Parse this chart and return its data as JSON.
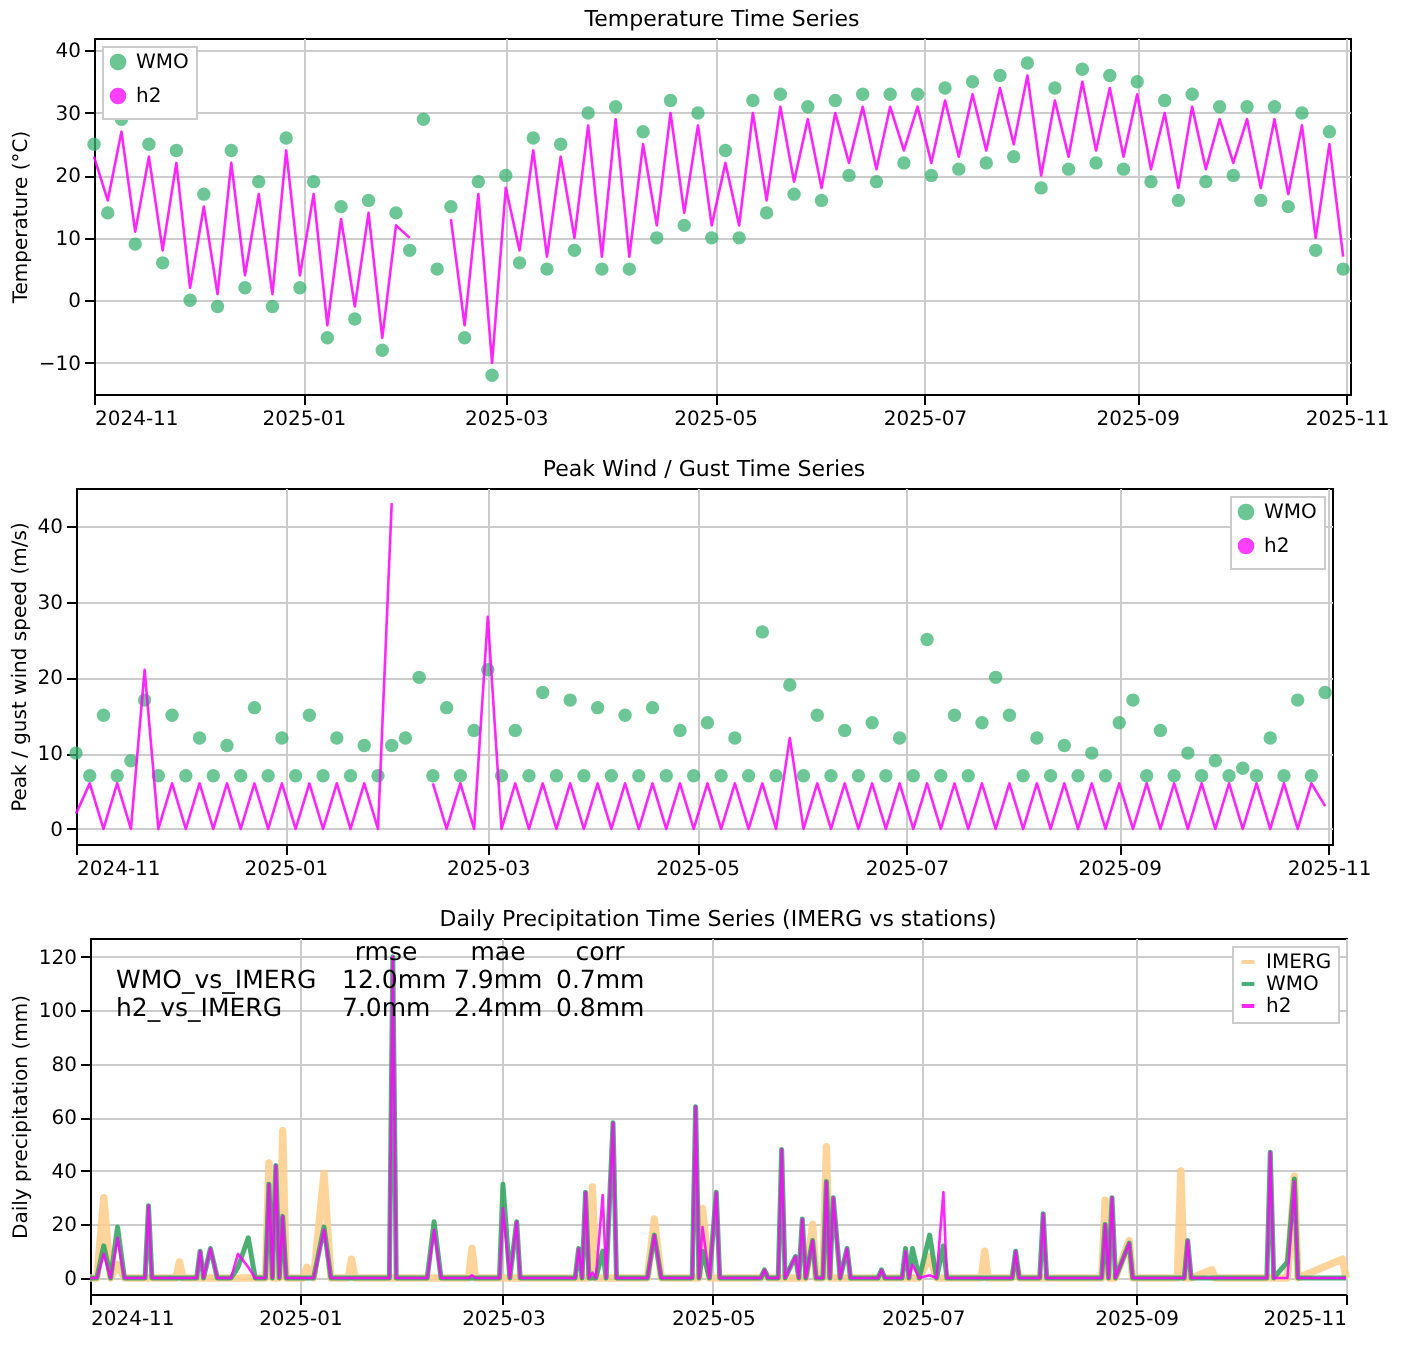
{
  "chart_data": [
    {
      "type": "line",
      "title": "Temperature Time Series",
      "ylabel": "Temperature (°C)",
      "x": [
        "2024-11-01",
        "2024-11-05",
        "2024-11-09",
        "2024-11-13",
        "2024-11-17",
        "2024-11-21",
        "2024-11-25",
        "2024-11-29",
        "2024-12-03",
        "2024-12-07",
        "2024-12-11",
        "2024-12-15",
        "2024-12-19",
        "2024-12-23",
        "2024-12-27",
        "2024-12-31",
        "2025-01-04",
        "2025-01-08",
        "2025-01-12",
        "2025-01-16",
        "2025-01-20",
        "2025-01-24",
        "2025-01-28",
        "2025-02-01",
        "2025-02-05",
        "2025-02-09",
        "2025-02-13",
        "2025-02-17",
        "2025-02-21",
        "2025-02-25",
        "2025-03-01",
        "2025-03-05",
        "2025-03-09",
        "2025-03-13",
        "2025-03-17",
        "2025-03-21",
        "2025-03-25",
        "2025-03-29",
        "2025-04-02",
        "2025-04-06",
        "2025-04-10",
        "2025-04-14",
        "2025-04-18",
        "2025-04-22",
        "2025-04-26",
        "2025-04-30",
        "2025-05-04",
        "2025-05-08",
        "2025-05-12",
        "2025-05-16",
        "2025-05-20",
        "2025-05-24",
        "2025-05-28",
        "2025-06-01",
        "2025-06-05",
        "2025-06-09",
        "2025-06-13",
        "2025-06-17",
        "2025-06-21",
        "2025-06-25",
        "2025-06-29",
        "2025-07-03",
        "2025-07-07",
        "2025-07-11",
        "2025-07-15",
        "2025-07-19",
        "2025-07-23",
        "2025-07-27",
        "2025-07-31",
        "2025-08-04",
        "2025-08-08",
        "2025-08-12",
        "2025-08-16",
        "2025-08-20",
        "2025-08-24",
        "2025-08-28",
        "2025-09-01",
        "2025-09-05",
        "2025-09-09",
        "2025-09-13",
        "2025-09-17",
        "2025-09-21",
        "2025-09-25",
        "2025-09-29",
        "2025-10-03",
        "2025-10-07",
        "2025-10-11",
        "2025-10-15",
        "2025-10-19",
        "2025-10-23",
        "2025-10-27",
        "2025-10-31"
      ],
      "series": [
        {
          "name": "WMO",
          "type": "scatter",
          "marker": "circle",
          "color": "#3cb371",
          "values": [
            25,
            14,
            29,
            9,
            25,
            6,
            24,
            0,
            17,
            -1,
            24,
            2,
            19,
            -1,
            26,
            2,
            19,
            -6,
            15,
            -3,
            16,
            -8,
            14,
            8,
            29,
            5,
            15,
            -6,
            19,
            -12,
            20,
            6,
            26,
            5,
            25,
            8,
            30,
            5,
            31,
            5,
            27,
            10,
            32,
            12,
            30,
            10,
            24,
            10,
            32,
            14,
            33,
            17,
            31,
            16,
            32,
            20,
            33,
            19,
            33,
            22,
            33,
            20,
            34,
            21,
            35,
            22,
            36,
            23,
            38,
            18,
            34,
            21,
            37,
            22,
            36,
            21,
            35,
            19,
            32,
            16,
            33,
            19,
            31,
            20,
            31,
            16,
            31,
            15,
            30,
            8,
            27,
            5
          ]
        },
        {
          "name": "h2",
          "color": "#ff00ff",
          "values": [
            23,
            16,
            27,
            11,
            23,
            8,
            22,
            2,
            15,
            1,
            22,
            4,
            17,
            1,
            24,
            4,
            17,
            -4,
            13,
            -1,
            14,
            -6,
            12,
            10,
            null,
            null,
            13,
            -4,
            17,
            -10,
            18,
            8,
            24,
            7,
            23,
            10,
            28,
            7,
            29,
            7,
            25,
            12,
            30,
            14,
            28,
            12,
            22,
            12,
            30,
            16,
            31,
            19,
            29,
            18,
            30,
            22,
            31,
            21,
            31,
            24,
            31,
            22,
            32,
            23,
            33,
            24,
            34,
            25,
            36,
            20,
            32,
            23,
            35,
            24,
            34,
            23,
            33,
            21,
            30,
            18,
            31,
            21,
            29,
            22,
            29,
            18,
            29,
            17,
            28,
            10,
            25,
            7
          ]
        }
      ],
      "xlim": [
        "2024-11-01",
        "2025-11-02"
      ],
      "xticks": [
        "2024-11",
        "2025-01",
        "2025-03",
        "2025-05",
        "2025-07",
        "2025-09",
        "2025-11"
      ],
      "ylim": [
        -15,
        42
      ],
      "yticks": [
        -10,
        0,
        10,
        20,
        30,
        40
      ],
      "grid": true,
      "legend": "top left"
    },
    {
      "type": "line",
      "title": "Peak Wind / Gust Time Series",
      "ylabel": "Peak / gust wind speed (m/s)",
      "x": [
        "2024-11-01",
        "2024-11-05",
        "2024-11-09",
        "2024-11-13",
        "2024-11-17",
        "2024-11-21",
        "2024-11-25",
        "2024-11-29",
        "2024-12-03",
        "2024-12-07",
        "2024-12-11",
        "2024-12-15",
        "2024-12-19",
        "2024-12-23",
        "2024-12-27",
        "2024-12-31",
        "2025-01-04",
        "2025-01-08",
        "2025-01-12",
        "2025-01-16",
        "2025-01-20",
        "2025-01-24",
        "2025-01-28",
        "2025-02-01",
        "2025-02-05",
        "2025-02-09",
        "2025-02-13",
        "2025-02-17",
        "2025-02-21",
        "2025-02-25",
        "2025-03-01",
        "2025-03-05",
        "2025-03-09",
        "2025-03-13",
        "2025-03-17",
        "2025-03-21",
        "2025-03-25",
        "2025-03-29",
        "2025-04-02",
        "2025-04-06",
        "2025-04-10",
        "2025-04-14",
        "2025-04-18",
        "2025-04-22",
        "2025-04-26",
        "2025-04-30",
        "2025-05-04",
        "2025-05-08",
        "2025-05-12",
        "2025-05-16",
        "2025-05-20",
        "2025-05-24",
        "2025-05-28",
        "2025-06-01",
        "2025-06-05",
        "2025-06-09",
        "2025-06-13",
        "2025-06-17",
        "2025-06-21",
        "2025-06-25",
        "2025-06-29",
        "2025-07-03",
        "2025-07-07",
        "2025-07-11",
        "2025-07-15",
        "2025-07-19",
        "2025-07-23",
        "2025-07-27",
        "2025-07-31",
        "2025-08-04",
        "2025-08-08",
        "2025-08-12",
        "2025-08-16",
        "2025-08-20",
        "2025-08-24",
        "2025-08-28",
        "2025-09-01",
        "2025-09-05",
        "2025-09-09",
        "2025-09-13",
        "2025-09-17",
        "2025-09-21",
        "2025-09-25",
        "2025-09-29",
        "2025-10-03",
        "2025-10-07",
        "2025-10-11",
        "2025-10-15",
        "2025-10-19",
        "2025-10-23",
        "2025-10-27",
        "2025-10-31"
      ],
      "series": [
        {
          "name": "WMO",
          "type": "scatter",
          "marker": "circle",
          "color": "#3cb371",
          "values": [
            10,
            7,
            15,
            7,
            9,
            17,
            7,
            15,
            7,
            12,
            7,
            11,
            7,
            16,
            7,
            12,
            7,
            15,
            7,
            12,
            7,
            11,
            7,
            11,
            12,
            20,
            7,
            16,
            7,
            13,
            21,
            7,
            13,
            7,
            18,
            7,
            17,
            7,
            16,
            7,
            15,
            7,
            16,
            7,
            13,
            7,
            14,
            7,
            12,
            7,
            26,
            7,
            19,
            7,
            15,
            7,
            13,
            7,
            14,
            7,
            12,
            7,
            25,
            7,
            15,
            7,
            14,
            20,
            15,
            7,
            12,
            7,
            11,
            7,
            10,
            7,
            14,
            17,
            7,
            13,
            7,
            10,
            7,
            9,
            7,
            8,
            7,
            12,
            7,
            17,
            7,
            18
          ]
        },
        {
          "name": "h2",
          "color": "#ff00ff",
          "values": [
            2,
            6,
            0,
            6,
            0,
            21,
            0,
            6,
            0,
            6,
            0,
            6,
            0,
            6,
            0,
            6,
            0,
            6,
            0,
            6,
            0,
            6,
            0,
            43,
            null,
            null,
            6,
            0,
            6,
            0,
            28,
            0,
            6,
            0,
            6,
            0,
            6,
            0,
            6,
            0,
            6,
            0,
            6,
            0,
            6,
            0,
            6,
            0,
            6,
            0,
            6,
            0,
            12,
            0,
            6,
            0,
            6,
            0,
            6,
            0,
            6,
            0,
            6,
            0,
            6,
            0,
            6,
            0,
            6,
            0,
            6,
            0,
            6,
            0,
            6,
            0,
            6,
            0,
            6,
            0,
            6,
            0,
            6,
            0,
            6,
            0,
            6,
            0,
            6,
            0,
            6,
            3
          ]
        }
      ],
      "xlim": [
        "2024-11-01",
        "2025-11-02"
      ],
      "xticks": [
        "2024-11",
        "2025-01",
        "2025-03",
        "2025-05",
        "2025-07",
        "2025-09",
        "2025-11"
      ],
      "ylim": [
        -2,
        45
      ],
      "yticks": [
        0,
        10,
        20,
        30,
        40
      ],
      "grid": true,
      "legend": "top right"
    },
    {
      "type": "line",
      "title": "Daily Precipitation Time Series (IMERG vs stations)",
      "ylabel": "Daily precipitation (mm)",
      "x": [
        "2024-11-01",
        "2024-11-03",
        "2024-11-05",
        "2024-11-07",
        "2024-11-09",
        "2024-11-11",
        "2024-11-17",
        "2024-11-18",
        "2024-11-19",
        "2024-11-26",
        "2024-11-27",
        "2024-11-28",
        "2024-12-02",
        "2024-12-03",
        "2024-12-04",
        "2024-12-06",
        "2024-12-08",
        "2024-12-12",
        "2024-12-14",
        "2024-12-17",
        "2024-12-19",
        "2024-12-22",
        "2024-12-23",
        "2024-12-24",
        "2024-12-25",
        "2024-12-26",
        "2024-12-27",
        "2024-12-28",
        "2025-01-02",
        "2025-01-03",
        "2025-01-05",
        "2025-01-08",
        "2025-01-10",
        "2025-01-15",
        "2025-01-16",
        "2025-01-17",
        "2025-01-27",
        "2025-01-28",
        "2025-01-29",
        "2025-02-07",
        "2025-02-09",
        "2025-02-11",
        "2025-02-19",
        "2025-02-20",
        "2025-02-21",
        "2025-02-28",
        "2025-03-01",
        "2025-03-03",
        "2025-03-05",
        "2025-03-06",
        "2025-03-22",
        "2025-03-23",
        "2025-03-24",
        "2025-03-25",
        "2025-03-26",
        "2025-03-27",
        "2025-03-28",
        "2025-03-30",
        "2025-03-31",
        "2025-04-02",
        "2025-04-03",
        "2025-04-12",
        "2025-04-14",
        "2025-04-16",
        "2025-04-25",
        "2025-04-26",
        "2025-04-27",
        "2025-04-28",
        "2025-04-30",
        "2025-05-02",
        "2025-05-03",
        "2025-05-15",
        "2025-05-16",
        "2025-05-17",
        "2025-05-20",
        "2025-05-21",
        "2025-05-22",
        "2025-05-25",
        "2025-05-26",
        "2025-05-27",
        "2025-05-28",
        "2025-05-30",
        "2025-05-31",
        "2025-06-02",
        "2025-06-03",
        "2025-06-04",
        "2025-06-05",
        "2025-06-07",
        "2025-06-09",
        "2025-06-10",
        "2025-06-18",
        "2025-06-19",
        "2025-06-20",
        "2025-06-25",
        "2025-06-26",
        "2025-06-27",
        "2025-06-28",
        "2025-06-30",
        "2025-07-03",
        "2025-07-05",
        "2025-07-07",
        "2025-07-08",
        "2025-07-18",
        "2025-07-19",
        "2025-07-20",
        "2025-07-27",
        "2025-07-28",
        "2025-07-29",
        "2025-08-04",
        "2025-08-05",
        "2025-08-06",
        "2025-08-22",
        "2025-08-23",
        "2025-08-24",
        "2025-08-25",
        "2025-08-26",
        "2025-08-30",
        "2025-08-31",
        "2025-09-13",
        "2025-09-14",
        "2025-09-15",
        "2025-09-16",
        "2025-09-17",
        "2025-09-23",
        "2025-09-24",
        "2025-10-09",
        "2025-10-10",
        "2025-10-11",
        "2025-10-15",
        "2025-10-17",
        "2025-10-18",
        "2025-10-31",
        "2025-11-01"
      ],
      "series": [
        {
          "name": "IMERG",
          "color": "#ffcc88",
          "values": [
            0,
            0,
            30,
            0,
            5,
            0,
            0,
            0,
            0,
            0,
            6,
            0,
            0,
            0,
            0,
            0,
            0,
            0,
            0,
            0,
            0,
            0,
            43,
            0,
            0,
            0,
            55,
            0,
            0,
            4,
            0,
            39,
            0,
            0,
            7,
            0,
            0,
            0,
            0,
            0,
            0,
            0,
            0,
            11,
            0,
            0,
            0,
            0,
            0,
            0,
            0,
            0,
            0,
            0,
            0,
            34,
            0,
            0,
            0,
            0,
            0,
            0,
            22,
            0,
            0,
            0,
            0,
            26,
            0,
            0,
            0,
            0,
            2,
            0,
            0,
            0,
            0,
            0,
            0,
            0,
            0,
            20,
            0,
            0,
            49,
            0,
            0,
            0,
            0,
            0,
            0,
            0,
            0,
            0,
            0,
            0,
            0,
            0,
            8,
            0,
            0,
            0,
            0,
            10,
            0,
            0,
            5,
            0,
            0,
            0,
            0,
            0,
            29,
            0,
            0,
            0,
            14,
            0,
            0,
            40,
            0,
            0,
            0,
            3,
            0,
            0,
            0,
            0,
            0,
            38,
            0,
            7,
            0
          ]
        },
        {
          "name": "WMO",
          "color": "#2ca05a",
          "values": [
            0,
            0,
            12,
            0,
            19,
            0,
            0,
            27,
            0,
            0,
            0,
            0,
            0,
            10,
            0,
            11,
            0,
            0,
            4,
            15,
            0,
            0,
            35,
            0,
            42,
            0,
            23,
            0,
            0,
            0,
            0,
            19,
            0,
            0,
            0,
            0,
            0,
            120,
            0,
            0,
            21,
            0,
            0,
            0,
            0,
            0,
            35,
            0,
            21,
            0,
            0,
            11,
            0,
            32,
            0,
            0,
            0,
            10,
            0,
            58,
            0,
            0,
            16,
            0,
            0,
            64,
            0,
            10,
            0,
            32,
            0,
            0,
            3,
            0,
            0,
            48,
            0,
            8,
            0,
            22,
            0,
            14,
            0,
            0,
            36,
            0,
            30,
            0,
            11,
            0,
            0,
            3,
            0,
            0,
            11,
            0,
            11,
            0,
            16,
            0,
            12,
            0,
            0,
            0,
            0,
            0,
            10,
            0,
            0,
            24,
            0,
            0,
            20,
            0,
            30,
            0,
            13,
            0,
            0,
            0,
            0,
            14,
            0,
            0,
            0,
            0,
            47,
            0,
            6,
            37,
            0,
            0,
            0
          ]
        },
        {
          "name": "h2",
          "color": "#ff00ff",
          "values": [
            0,
            0,
            9,
            0,
            15,
            0,
            0,
            27,
            0,
            0,
            0,
            0,
            0,
            10,
            0,
            11,
            0,
            0,
            9,
            4,
            0,
            0,
            35,
            0,
            42,
            0,
            23,
            0,
            0,
            0,
            0,
            18,
            0,
            0,
            0,
            0,
            0,
            120,
            0,
            0,
            18,
            0,
            0,
            1,
            0,
            0,
            26,
            0,
            21,
            0,
            0,
            11,
            0,
            32,
            0,
            2,
            0,
            31,
            0,
            58,
            0,
            0,
            16,
            0,
            0,
            64,
            0,
            19,
            0,
            32,
            0,
            0,
            3,
            0,
            0,
            48,
            0,
            8,
            0,
            22,
            0,
            14,
            0,
            0,
            36,
            0,
            30,
            0,
            11,
            0,
            0,
            3,
            0,
            0,
            10,
            0,
            5,
            0,
            1,
            0,
            32,
            0,
            0,
            0,
            0,
            0,
            10,
            0,
            0,
            24,
            0,
            0,
            20,
            0,
            30,
            0,
            13,
            0,
            0,
            0,
            0,
            14,
            0,
            0,
            0,
            0,
            47,
            0,
            0,
            36,
            0,
            0,
            0
          ]
        }
      ],
      "annotations": [
        "rmse",
        "mae",
        "corr",
        "WMO_vs_IMERG",
        "12.0mm",
        "7.9mm",
        "0.7mm",
        "h2_vs_IMERG",
        "7.0mm",
        "2.4mm",
        "0.8mm"
      ],
      "xlim": [
        "2024-11-01",
        "2025-11-01"
      ],
      "xticks": [
        "2024-11",
        "2025-01",
        "2025-03",
        "2025-05",
        "2025-07",
        "2025-09",
        "2025-11"
      ],
      "ylim": [
        -6,
        127
      ],
      "yticks": [
        0,
        20,
        40,
        60,
        80,
        100,
        120
      ],
      "grid": true,
      "legend": "top right"
    }
  ]
}
